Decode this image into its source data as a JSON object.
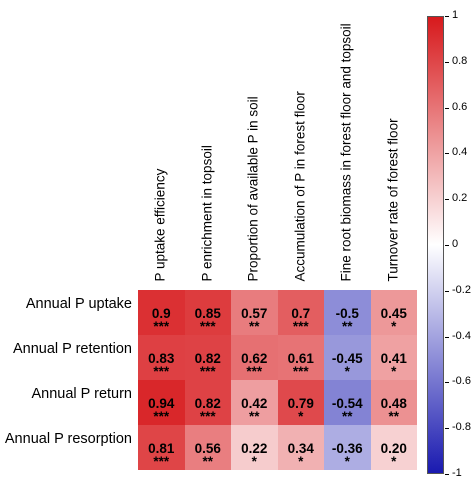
{
  "chart_data": {
    "type": "heatmap",
    "columns": [
      "P uptake efficiency",
      "P enrichment in topsoil",
      "Proportion of available P in soil",
      "Accumulation of P in forest floor",
      "Fine root biomass in forest floor and topsoil",
      "Turnover rate of forest floor"
    ],
    "rows": [
      "Annual P uptake",
      "Annual P retention",
      "Annual P return",
      "Annual P resorption"
    ],
    "values": [
      [
        0.9,
        0.85,
        0.57,
        0.7,
        -0.5,
        0.45
      ],
      [
        0.83,
        0.82,
        0.62,
        0.61,
        -0.45,
        0.41
      ],
      [
        0.94,
        0.82,
        0.42,
        0.79,
        -0.54,
        0.48
      ],
      [
        0.81,
        0.56,
        0.22,
        0.34,
        -0.36,
        0.2
      ]
    ],
    "value_labels": [
      [
        "0.9",
        "0.85",
        "0.57",
        "0.7",
        "-0.5",
        "0.45"
      ],
      [
        "0.83",
        "0.82",
        "0.62",
        "0.61",
        "-0.45",
        "0.41"
      ],
      [
        "0.94",
        "0.82",
        "0.42",
        "0.79",
        "-0.54",
        "0.48"
      ],
      [
        "0.81",
        "0.56",
        "0.22",
        "0.34",
        "-0.36",
        "0.20"
      ]
    ],
    "significance": [
      [
        "***",
        "***",
        "**",
        "***",
        "**",
        "*"
      ],
      [
        "***",
        "***",
        "***",
        "***",
        "*",
        "*"
      ],
      [
        "***",
        "***",
        "**",
        "*",
        "**",
        "**"
      ],
      [
        "***",
        "**",
        "*",
        "*",
        "*",
        "*"
      ]
    ],
    "colorbar": {
      "range": [
        -1,
        1
      ],
      "tick_labels": [
        "1",
        "0.8",
        "0.6",
        "0.4",
        "0.2",
        "0",
        "-0.2",
        "-0.4",
        "-0.6",
        "-0.8",
        "-1"
      ],
      "tick_values": [
        1,
        0.8,
        0.6,
        0.4,
        0.2,
        0,
        -0.2,
        -0.4,
        -0.6,
        -0.8,
        -1
      ],
      "high_color": "#d7191c",
      "mid_color": "#ffffff",
      "low_color": "#1a1ab0"
    }
  }
}
